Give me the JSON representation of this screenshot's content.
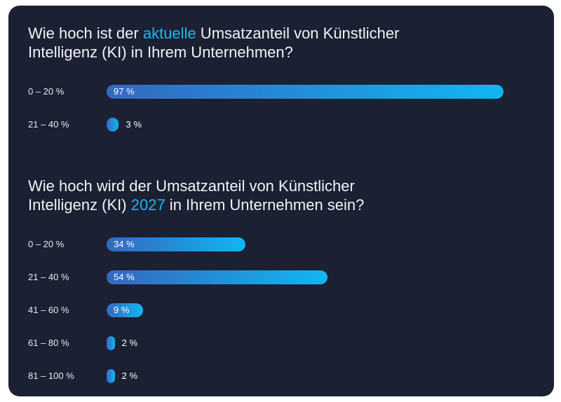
{
  "chart_data": [
    {
      "type": "bar",
      "orientation": "horizontal",
      "title": "Wie hoch ist der aktuelle Umsatzanteil von Künstlicher Intelligenz (KI) in Ihrem Unternehmen?",
      "title_highlight": "aktuelle",
      "categories": [
        "0 – 20 %",
        "21 – 40 %"
      ],
      "values": [
        97,
        3
      ],
      "value_labels": [
        "97 %",
        "3 %"
      ],
      "xlim": [
        0,
        100
      ]
    },
    {
      "type": "bar",
      "orientation": "horizontal",
      "title": "Wie hoch wird der Umsatzanteil von Künstlicher Intelligenz (KI) 2027 in Ihrem Unternehmen sein?",
      "title_highlight": "2027",
      "categories": [
        "0 – 20 %",
        "21 – 40 %",
        "41 – 60 %",
        "61 – 80 %",
        "81 – 100 %"
      ],
      "values": [
        34,
        54,
        9,
        2,
        2
      ],
      "value_labels": [
        "34 %",
        "54 %",
        "9 %",
        "2 %",
        "2 %"
      ],
      "xlim": [
        0,
        100
      ]
    }
  ]
}
